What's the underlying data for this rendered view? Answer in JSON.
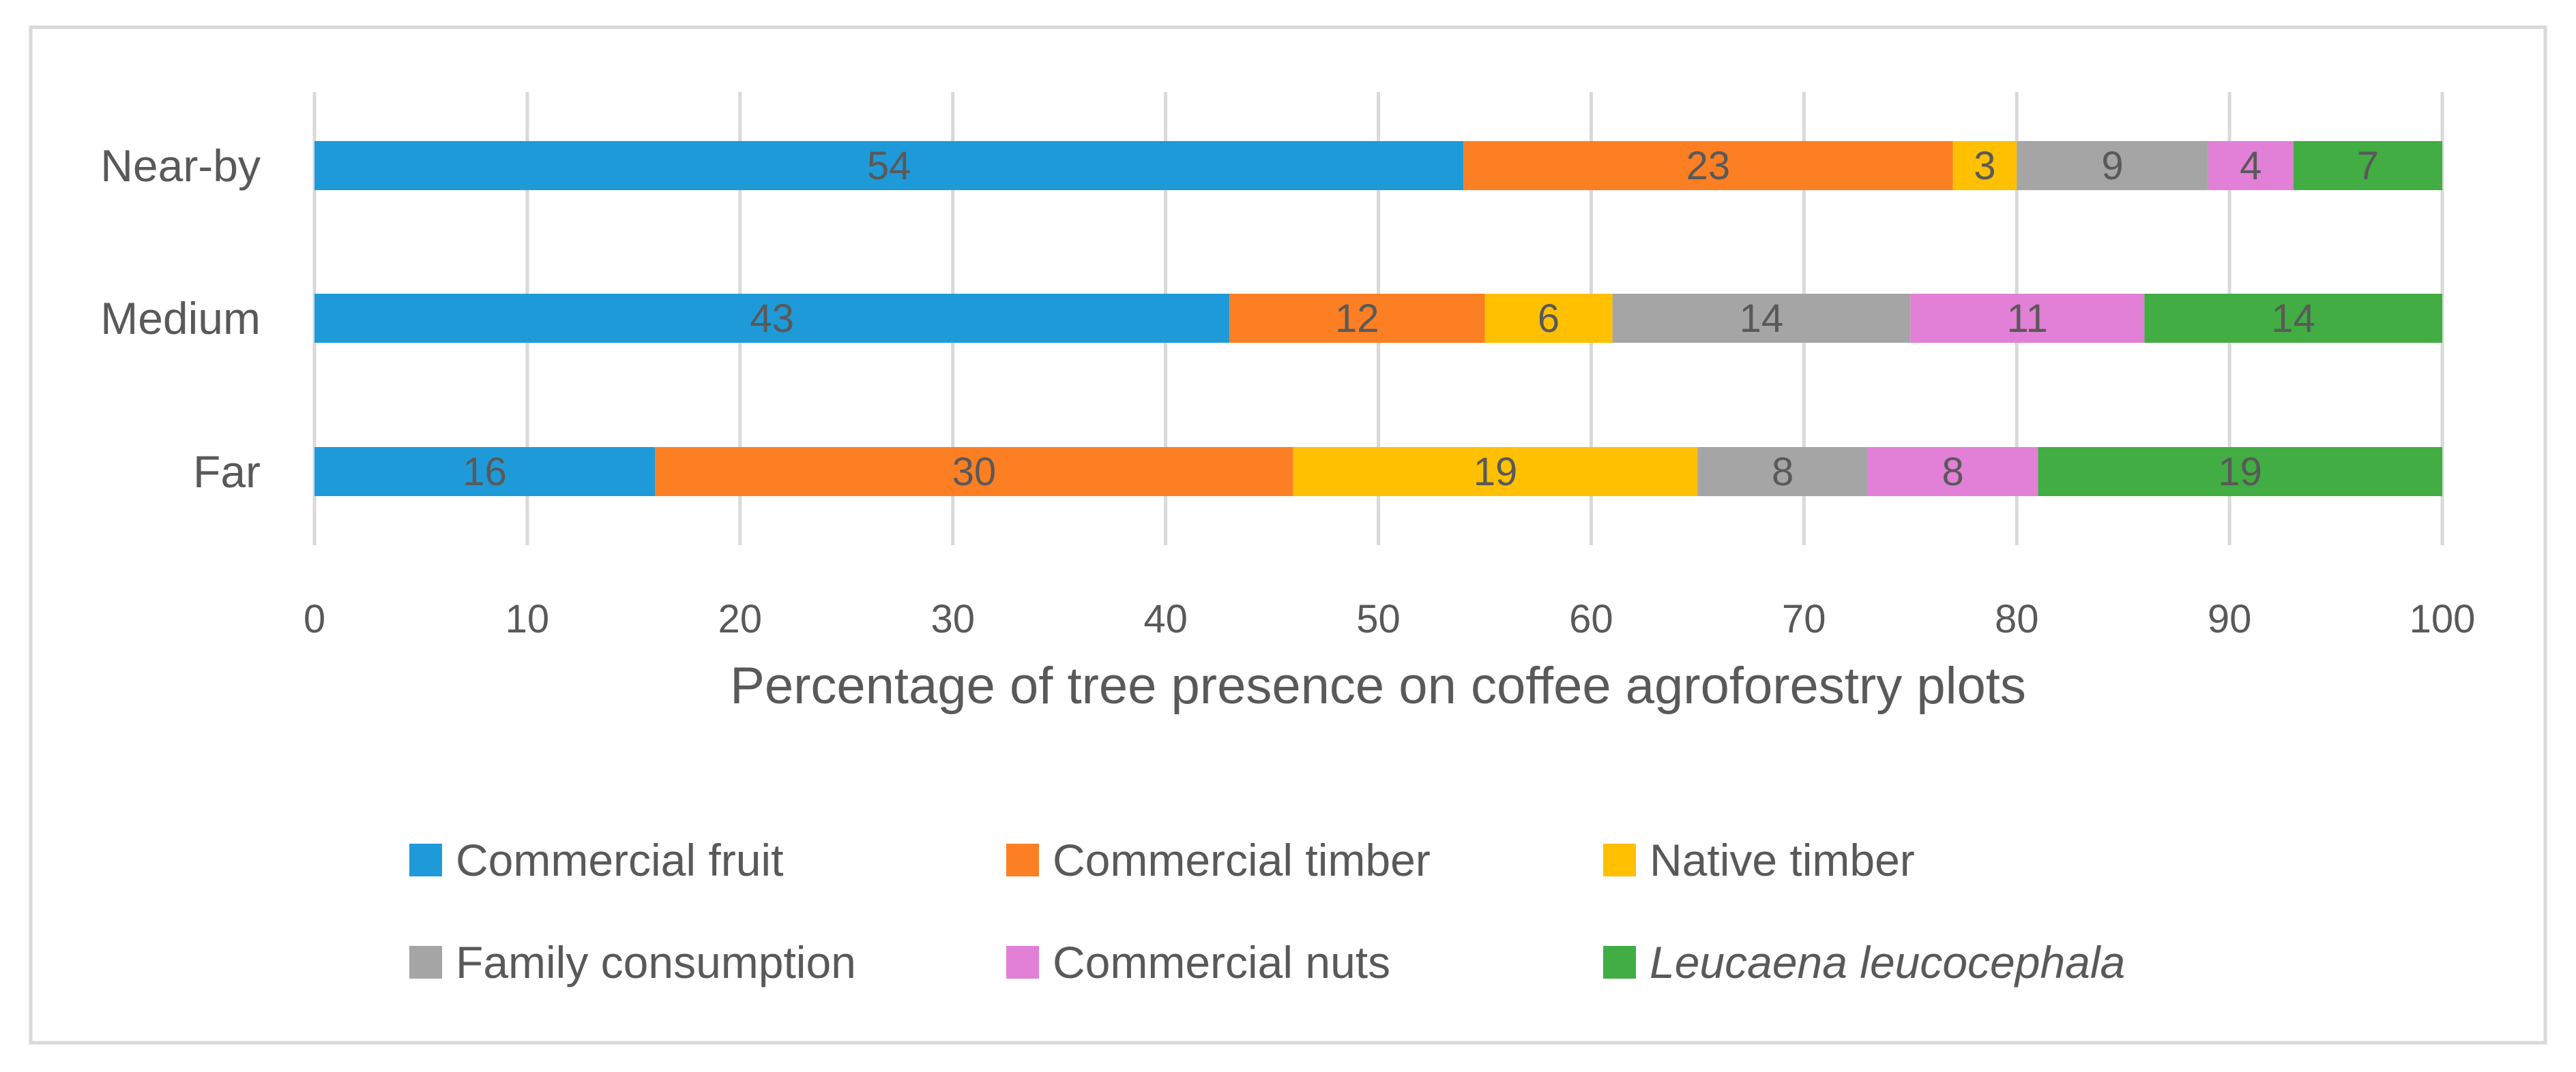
{
  "chart_data": {
    "type": "bar",
    "orientation": "horizontal",
    "stacked": true,
    "title": "",
    "xlabel": "Percentage of tree presence on coffee agroforestry plots",
    "ylabel": "",
    "xlim": [
      0,
      100
    ],
    "xticks": [
      "0",
      "10",
      "20",
      "30",
      "40",
      "50",
      "60",
      "70",
      "80",
      "90",
      "100"
    ],
    "categories": [
      "Near-by",
      "Medium",
      "Far"
    ],
    "grid": "vertical",
    "legend_position": "bottom",
    "series": [
      {
        "name": "Commercial fruit",
        "color": "#1f9ad9",
        "italic": false,
        "values": [
          54,
          43,
          16
        ]
      },
      {
        "name": "Commercial timber",
        "color": "#fd7f23",
        "italic": false,
        "values": [
          23,
          12,
          30
        ]
      },
      {
        "name": "Native timber",
        "color": "#fec000",
        "italic": false,
        "values": [
          3,
          6,
          19
        ]
      },
      {
        "name": "Family consumption",
        "color": "#a5a5a5",
        "italic": false,
        "values": [
          9,
          14,
          8
        ]
      },
      {
        "name": "Commercial nuts",
        "color": "#e27fd6",
        "italic": false,
        "values": [
          4,
          11,
          8
        ]
      },
      {
        "name": "Leucaena leucocephala",
        "color": "#41ad42",
        "italic": true,
        "values": [
          7,
          14,
          19
        ]
      }
    ]
  }
}
